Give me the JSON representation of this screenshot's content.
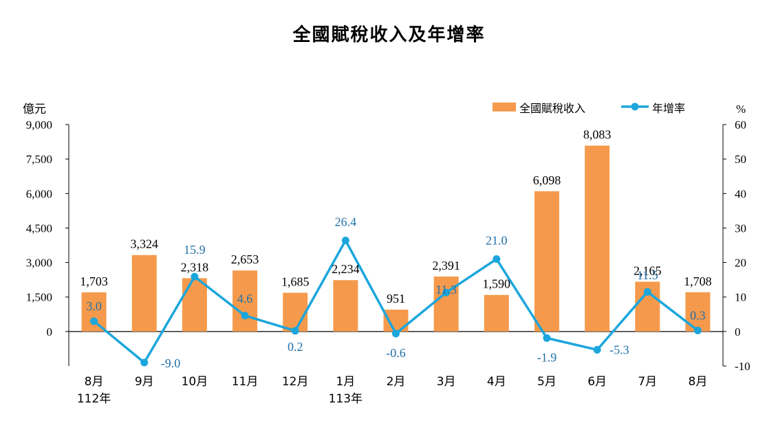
{
  "chart_data": {
    "type": "bar+line",
    "title": "全國賦稅收入及年增率",
    "left_unit": "億元",
    "right_unit": "%",
    "categories": [
      "8月",
      "9月",
      "10月",
      "11月",
      "12月",
      "1月",
      "2月",
      "3月",
      "4月",
      "5月",
      "6月",
      "7月",
      "8月"
    ],
    "year_labels": [
      {
        "index": 0,
        "label": "112年"
      },
      {
        "index": 5,
        "label": "113年"
      }
    ],
    "series": [
      {
        "name": "全國賦稅收入",
        "kind": "bar",
        "axis": "left",
        "color": "#F59A4C",
        "values": [
          1703,
          3324,
          2318,
          2653,
          1685,
          2234,
          951,
          2391,
          1590,
          6098,
          8083,
          2165,
          1708
        ],
        "labels": [
          "1,703",
          "3,324",
          "2,318",
          "2,653",
          "1,685",
          "2,234",
          "951",
          "2,391",
          "1,590",
          "6,098",
          "8,083",
          "2,165",
          "1,708"
        ]
      },
      {
        "name": "年增率",
        "kind": "line",
        "axis": "right",
        "color": "#1BA6DC",
        "label_color": "#1F6FA8",
        "values": [
          3.0,
          -9.0,
          15.9,
          4.6,
          0.2,
          26.4,
          -0.6,
          11.3,
          21.0,
          -1.9,
          -5.3,
          11.5,
          0.3
        ],
        "labels": [
          "3.0",
          "-9.0",
          "15.9",
          "4.6",
          "0.2",
          "26.4",
          "-0.6",
          "11.3",
          "21.0",
          "-1.9",
          "-5.3",
          "11.5",
          "0.3"
        ]
      }
    ],
    "y_left": {
      "min": -1500,
      "max": 9000,
      "ticks": [
        0,
        1500,
        3000,
        4500,
        6000,
        7500,
        9000
      ],
      "tick_labels": [
        "0",
        "1,500",
        "3,000",
        "4,500",
        "6,000",
        "7,500",
        "9,000"
      ]
    },
    "y_right": {
      "min": -10,
      "max": 60,
      "ticks": [
        -10,
        0,
        10,
        20,
        30,
        40,
        50,
        60
      ],
      "tick_labels": [
        "-10",
        "0",
        "10",
        "20",
        "30",
        "40",
        "50",
        "60"
      ]
    },
    "legend": {
      "position": "top-right"
    },
    "grid": false
  }
}
